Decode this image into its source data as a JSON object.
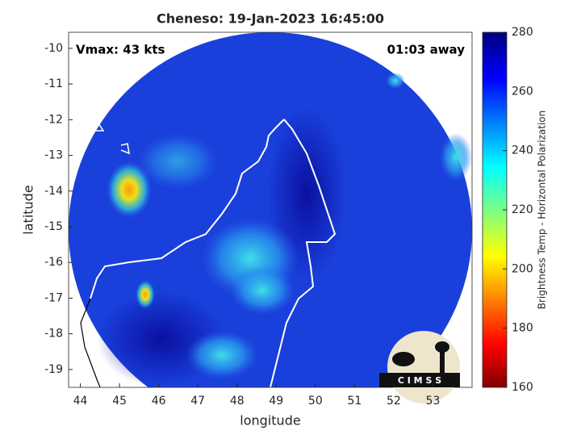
{
  "chart_data": {
    "type": "map",
    "title": "Cheneso: 19-Jan-2023 16:45:00",
    "annotations": [
      "Vmax: 43 kts",
      "01:03 away"
    ],
    "xlabel": "longitude",
    "ylabel": "latitude",
    "xlim": [
      43.7,
      54.0
    ],
    "ylim": [
      -19.5,
      -9.55
    ],
    "xticks": [
      44,
      45,
      46,
      47,
      48,
      49,
      50,
      51,
      52,
      53
    ],
    "yticks": [
      -10,
      -11,
      -12,
      -13,
      -14,
      -15,
      -16,
      -17,
      -18,
      -19
    ],
    "colorbar": {
      "label": "Brightness Temp - Horizontal Polarization",
      "lim": [
        160,
        280
      ],
      "ticks": [
        160,
        180,
        200,
        220,
        240,
        260,
        280
      ],
      "colormap": "jet"
    },
    "logo": "C I M S S"
  }
}
